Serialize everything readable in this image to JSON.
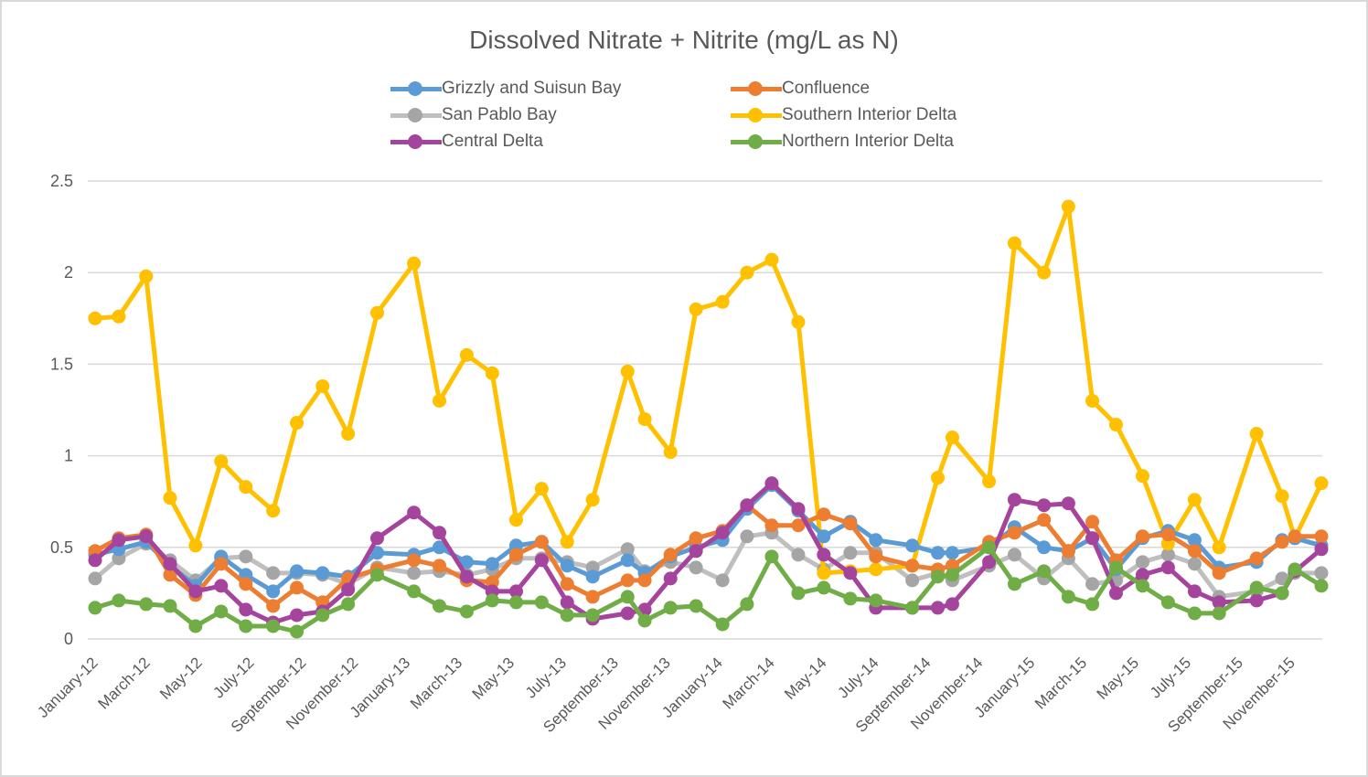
{
  "chart_data": {
    "type": "line",
    "title": "Dissolved Nitrate + Nitrite (mg/L as N)",
    "xlabel": "",
    "ylabel": "",
    "ylim": [
      0,
      2.5
    ],
    "yticks": [
      0,
      0.5,
      1,
      1.5,
      2,
      2.5
    ],
    "ytick_labels": [
      "0",
      "0.5",
      "1",
      "1.5",
      "2",
      "2.5"
    ],
    "grid": true,
    "legend_position": "top-center",
    "x_axis_type": "date",
    "x_tick_labels": [
      "January-12",
      "March-12",
      "May-12",
      "July-12",
      "September-12",
      "November-12",
      "January-13",
      "March-13",
      "May-13",
      "July-13",
      "September-13",
      "November-13",
      "January-14",
      "March-14",
      "May-14",
      "July-14",
      "September-14",
      "November-14",
      "January-15",
      "March-15",
      "May-15",
      "July-15",
      "September-15",
      "November-15"
    ],
    "x_tick_months": [
      0,
      2,
      4,
      6,
      8,
      10,
      12,
      14,
      16,
      18,
      20,
      22,
      24,
      26,
      28,
      30,
      32,
      34,
      36,
      38,
      40,
      42,
      44,
      46
    ],
    "x_months_since_jan2012": [
      0,
      0.91,
      1.96,
      2.88,
      3.86,
      4.84,
      5.79,
      6.84,
      7.75,
      8.74,
      9.72,
      10.84,
      12.25,
      13.23,
      14.28,
      15.26,
      16.18,
      17.16,
      18.14,
      19.12,
      20.46,
      21.12,
      22.11,
      23.09,
      24.11,
      25.05,
      26.0,
      27.02,
      28.0,
      29.02,
      30.0,
      31.4,
      32.38,
      32.94,
      34.35,
      35.33,
      36.46,
      37.4,
      38.32,
      39.23,
      40.25,
      41.23,
      42.25,
      43.19,
      44.63,
      45.61,
      46.1,
      47.12
    ],
    "series": [
      {
        "name": "Grizzly and Suisun Bay",
        "color": "#5B9BD5",
        "values": [
          0.46,
          0.49,
          0.53,
          0.4,
          0.29,
          0.45,
          0.35,
          0.26,
          0.37,
          0.36,
          0.34,
          0.47,
          0.46,
          0.5,
          0.42,
          0.41,
          0.51,
          0.53,
          0.4,
          0.34,
          0.43,
          0.36,
          0.45,
          0.5,
          0.54,
          0.71,
          0.84,
          0.7,
          0.56,
          0.64,
          0.54,
          0.51,
          0.47,
          0.47,
          0.5,
          0.61,
          0.5,
          0.48,
          0.55,
          0.38,
          0.55,
          0.59,
          0.54,
          0.39,
          0.42,
          0.54,
          0.55,
          0.51
        ]
      },
      {
        "name": "Confluence",
        "color": "#ED7D31",
        "values": [
          0.48,
          0.55,
          0.57,
          0.35,
          0.24,
          0.41,
          0.3,
          0.18,
          0.28,
          0.2,
          0.33,
          0.38,
          0.43,
          0.4,
          0.32,
          0.31,
          0.46,
          0.53,
          0.3,
          0.23,
          0.32,
          0.32,
          0.46,
          0.55,
          0.59,
          0.73,
          0.62,
          0.62,
          0.68,
          0.63,
          0.45,
          0.4,
          0.38,
          0.4,
          0.53,
          0.58,
          0.65,
          0.48,
          0.64,
          0.43,
          0.56,
          0.57,
          0.48,
          0.36,
          0.44,
          0.53,
          0.56,
          0.56
        ]
      },
      {
        "name": "San Pablo Bay",
        "color": "#A5A5A5",
        "values": [
          0.33,
          0.44,
          0.52,
          0.43,
          0.32,
          0.44,
          0.45,
          0.36,
          0.36,
          0.35,
          0.3,
          0.39,
          0.36,
          0.37,
          0.35,
          0.38,
          0.44,
          0.44,
          0.42,
          0.39,
          0.49,
          0.37,
          0.42,
          0.39,
          0.32,
          0.56,
          0.58,
          0.46,
          0.38,
          0.47,
          0.47,
          0.32,
          0.36,
          0.32,
          0.4,
          0.46,
          0.33,
          0.44,
          0.3,
          0.32,
          0.42,
          0.46,
          0.41,
          0.23,
          0.26,
          0.33,
          0.36,
          0.36
        ]
      },
      {
        "name": "Southern Interior Delta",
        "color": "#FFC000",
        "values": [
          1.75,
          1.76,
          1.98,
          0.77,
          0.51,
          0.97,
          0.83,
          0.7,
          1.18,
          1.38,
          1.12,
          1.78,
          2.05,
          1.3,
          1.55,
          1.45,
          0.65,
          0.82,
          0.53,
          0.76,
          1.46,
          1.2,
          1.02,
          1.8,
          1.84,
          2.0,
          2.07,
          1.73,
          0.36,
          0.37,
          0.38,
          0.4,
          0.88,
          1.1,
          0.86,
          2.16,
          2.0,
          2.36,
          1.3,
          1.17,
          0.89,
          0.52,
          0.76,
          0.5,
          1.12,
          0.78,
          0.55,
          0.85
        ]
      },
      {
        "name": "Central Delta",
        "color": "#A5449C",
        "values": [
          0.43,
          0.54,
          0.56,
          0.41,
          0.26,
          0.29,
          0.16,
          0.09,
          0.13,
          0.15,
          0.27,
          0.55,
          0.69,
          0.58,
          0.34,
          0.26,
          0.26,
          0.43,
          0.2,
          0.11,
          0.14,
          0.16,
          0.33,
          0.48,
          0.58,
          0.73,
          0.85,
          0.71,
          0.46,
          0.36,
          0.17,
          0.17,
          0.17,
          0.19,
          0.42,
          0.76,
          0.73,
          0.74,
          0.55,
          0.25,
          0.35,
          0.39,
          0.26,
          0.2,
          0.21,
          0.25,
          0.37,
          0.49
        ]
      },
      {
        "name": "Northern Interior Delta",
        "color": "#70AD47",
        "values": [
          0.17,
          0.21,
          0.19,
          0.18,
          0.07,
          0.15,
          0.07,
          0.07,
          0.04,
          0.13,
          0.19,
          0.35,
          0.26,
          0.18,
          0.15,
          0.21,
          0.2,
          0.2,
          0.13,
          0.13,
          0.23,
          0.1,
          0.17,
          0.18,
          0.08,
          0.19,
          0.45,
          0.25,
          0.28,
          0.22,
          0.21,
          0.17,
          0.34,
          0.35,
          0.5,
          0.3,
          0.37,
          0.23,
          0.19,
          0.39,
          0.29,
          0.2,
          0.14,
          0.14,
          0.28,
          0.25,
          0.38,
          0.29
        ]
      }
    ]
  },
  "legend_order": [
    0,
    1,
    2,
    3,
    4,
    5
  ]
}
